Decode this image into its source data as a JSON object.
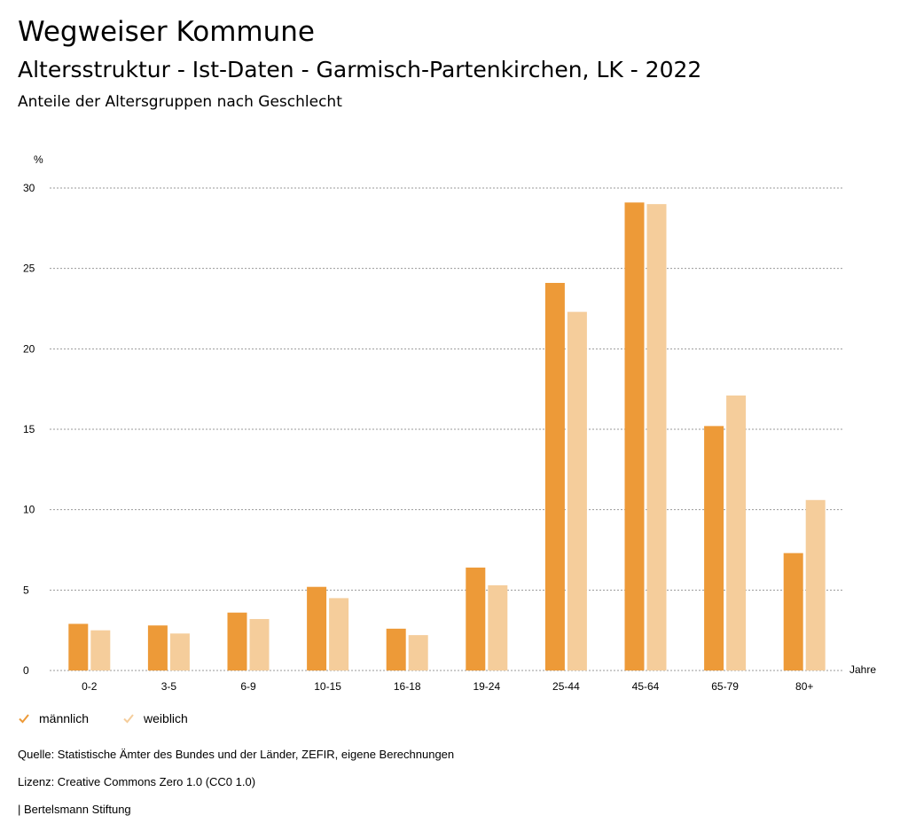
{
  "header": {
    "title": "Wegweiser Kommune",
    "subtitle": "Altersstruktur - Ist-Daten - Garmisch-Partenkirchen, LK - 2022",
    "description": "Anteile der Altersgruppen nach Geschlecht"
  },
  "chart_data": {
    "type": "bar",
    "ylabel": "%",
    "xlabel": "Jahre",
    "ylim": [
      0,
      30
    ],
    "yticks": [
      0,
      5,
      10,
      15,
      20,
      25,
      30
    ],
    "grid": true,
    "legend_position": "bottom-left",
    "categories": [
      "0-2",
      "3-5",
      "6-9",
      "10-15",
      "16-18",
      "19-24",
      "25-44",
      "45-64",
      "65-79",
      "80+"
    ],
    "series": [
      {
        "name": "männlich",
        "color": "#ed9a38",
        "values": [
          2.9,
          2.8,
          3.6,
          5.2,
          2.6,
          6.4,
          24.1,
          29.1,
          15.2,
          7.3
        ]
      },
      {
        "name": "weiblich",
        "color": "#f5cd9b",
        "values": [
          2.5,
          2.3,
          3.2,
          4.5,
          2.2,
          5.3,
          22.3,
          29.0,
          17.1,
          10.6
        ]
      }
    ]
  },
  "legend": {
    "items": [
      {
        "label": "männlich",
        "icon": "check-icon",
        "color": "#ed9a38"
      },
      {
        "label": "weiblich",
        "icon": "check-icon",
        "color": "#f5cd9b"
      }
    ]
  },
  "footer": {
    "source": "Quelle: Statistische Ämter des Bundes und der Länder, ZEFIR, eigene Berechnungen",
    "license": "Lizenz: Creative Commons Zero 1.0 (CC0 1.0)",
    "publisher": "| Bertelsmann Stiftung"
  }
}
